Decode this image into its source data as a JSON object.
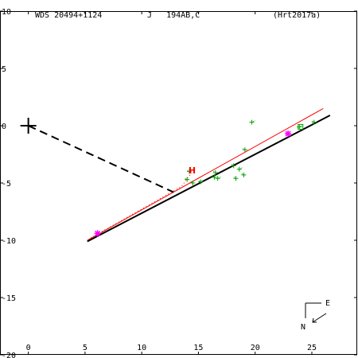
{
  "header": {
    "wds": "WDS 20494+1124",
    "system": "J   194AB,C",
    "reference": "(Hrt2017a)"
  },
  "compass": {
    "east": "E",
    "north": "N"
  },
  "chart_data": {
    "type": "scatter",
    "title": "WDS 20494+1124    J   194AB,C",
    "xlabel": "",
    "ylabel": "",
    "xlim": [
      -2.5,
      29
    ],
    "ylim": [
      -20,
      10
    ],
    "grid": false,
    "x_ticks": [
      0,
      5,
      10,
      15,
      20,
      25
    ],
    "x_tick_labels": [
      "0",
      "5",
      "10",
      "15",
      "20",
      "25"
    ],
    "y_ticks": [
      10,
      5,
      0,
      -5,
      -10,
      -15,
      -20
    ],
    "y_tick_labels": [
      "10",
      "5",
      "0",
      "-5",
      "-10",
      "-15",
      "-20"
    ],
    "primary": [
      0,
      0
    ],
    "colors": {
      "orbit": "#000000",
      "red_line": "#ff0000",
      "measure": "#00a000",
      "endpoint": "#ff00ff",
      "hipparcos": "#ff0000"
    },
    "series": [
      {
        "kind": "line",
        "style": "solid-black",
        "points": [
          [
            5.2,
            -10.1
          ],
          [
            26.6,
            0.9
          ]
        ]
      },
      {
        "kind": "line",
        "style": "solid-red",
        "points": [
          [
            5.2,
            -10.0
          ],
          [
            26.0,
            1.5
          ]
        ]
      },
      {
        "kind": "line",
        "style": "dashed-black",
        "points": [
          [
            0,
            0
          ],
          [
            12.8,
            -5.8
          ]
        ]
      },
      {
        "kind": "line",
        "style": "dotted-red",
        "points": [
          [
            5.5,
            -9.8
          ],
          [
            13.5,
            -5.3
          ],
          [
            14.4,
            -4.1
          ]
        ]
      },
      {
        "kind": "points",
        "marker": "plus",
        "points": [
          [
            14.2,
            -4.0
          ],
          [
            14.0,
            -4.7
          ],
          [
            14.5,
            -5.0
          ],
          [
            15.2,
            -4.9
          ],
          [
            16.5,
            -4.1
          ],
          [
            16.4,
            -4.5
          ],
          [
            16.7,
            -4.6
          ],
          [
            18.1,
            -3.5
          ],
          [
            18.3,
            -4.6
          ],
          [
            18.6,
            -3.8
          ],
          [
            19.0,
            -4.3
          ],
          [
            19.1,
            -2.1
          ],
          [
            19.7,
            0.3
          ],
          [
            23.9,
            -0.1
          ],
          [
            25.2,
            0.3
          ]
        ]
      },
      {
        "kind": "points",
        "marker": "square",
        "points": [
          [
            24.0,
            -0.1
          ]
        ]
      },
      {
        "kind": "points",
        "marker": "H",
        "label": "H",
        "points": [
          [
            14.4,
            -3.9
          ]
        ]
      },
      {
        "kind": "points",
        "marker": "star",
        "points": [
          [
            6.1,
            -9.4
          ],
          [
            22.9,
            -0.7
          ]
        ]
      }
    ]
  }
}
